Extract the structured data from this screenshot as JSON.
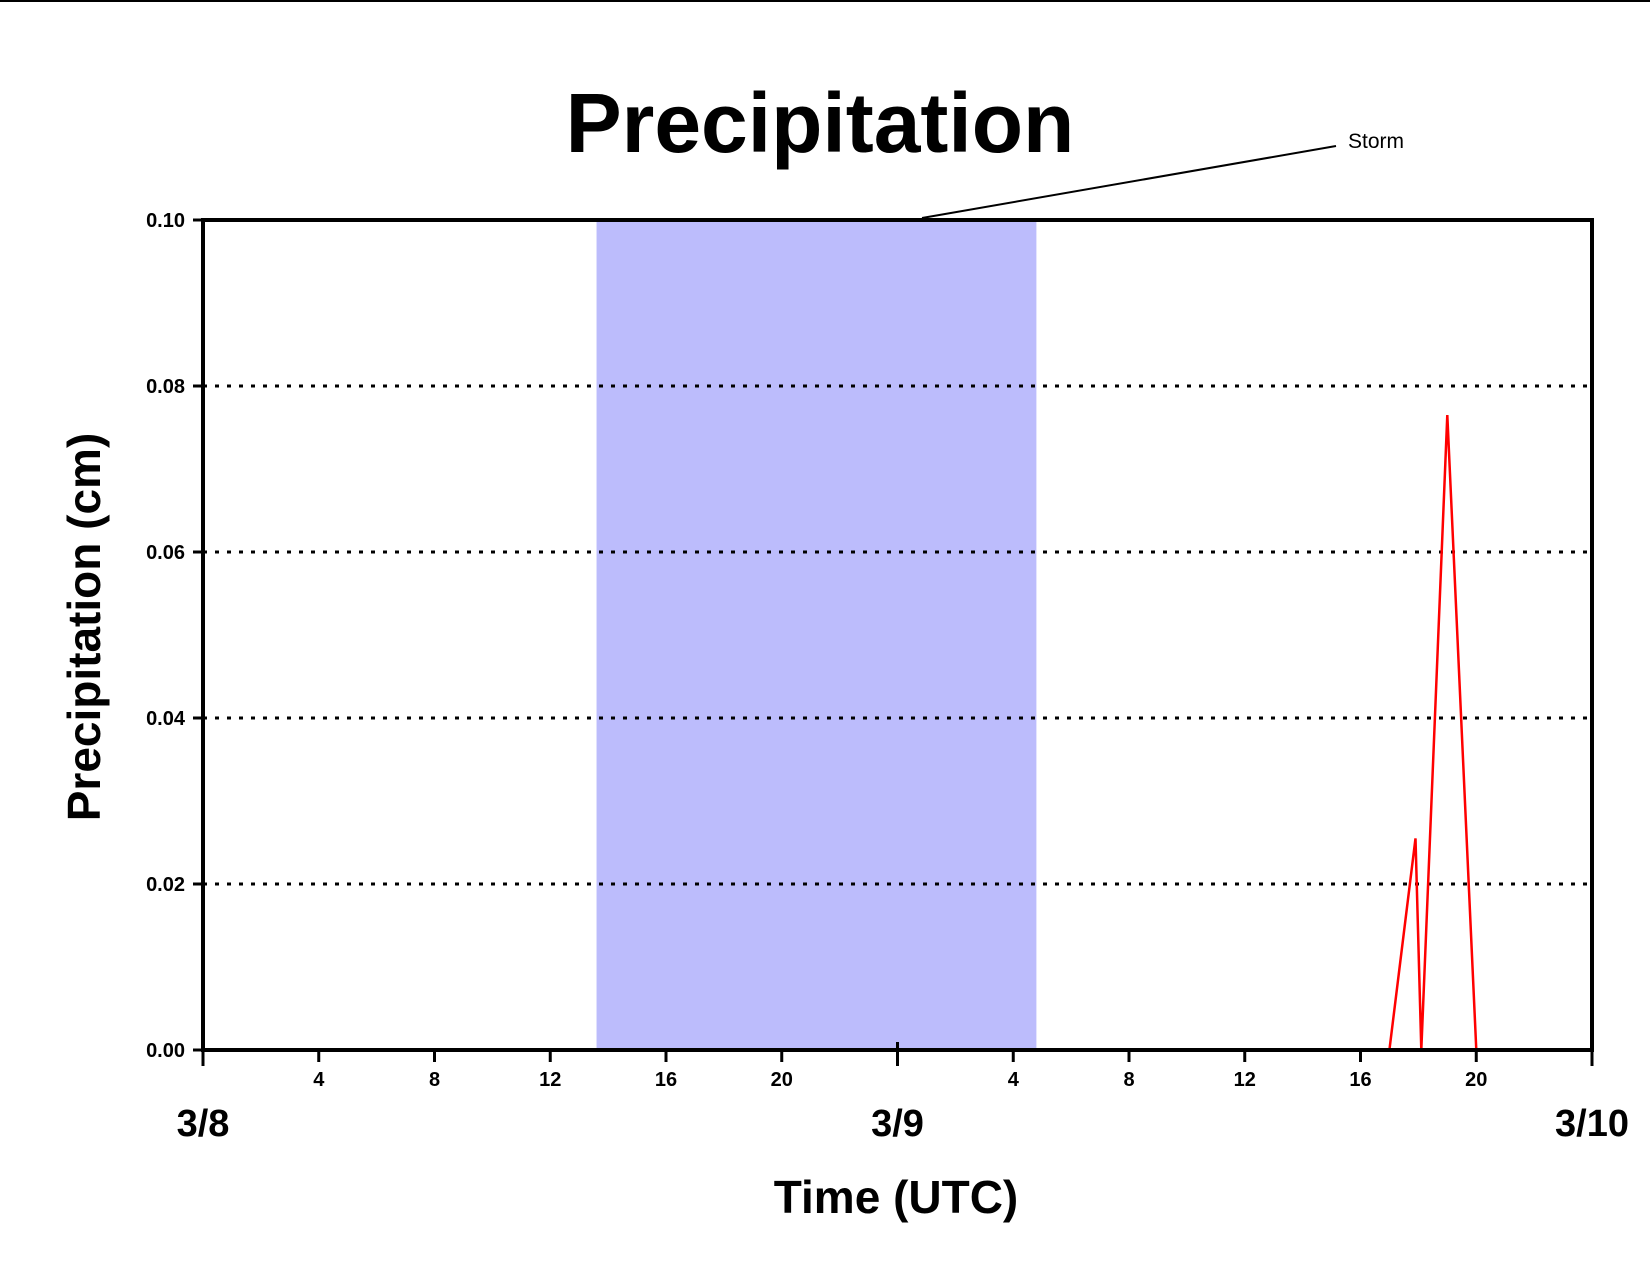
{
  "chart_data": {
    "type": "line",
    "title": "Precipitation",
    "xlabel": "Time (UTC)",
    "ylabel": "Precipitation (cm)",
    "ylim": [
      0,
      0.1
    ],
    "yticks": [
      "0.00",
      "0.02",
      "0.04",
      "0.06",
      "0.08",
      "0.10"
    ],
    "xlim": [
      "3/8 00:00",
      "3/10 00:00"
    ],
    "x_unit": "hours UTC from 3/8 00:00",
    "hour_ticks": [
      {
        "hour": 4,
        "label": "4"
      },
      {
        "hour": 8,
        "label": "8"
      },
      {
        "hour": 12,
        "label": "12"
      },
      {
        "hour": 16,
        "label": "16"
      },
      {
        "hour": 20,
        "label": "20"
      },
      {
        "hour": 28,
        "label": "4"
      },
      {
        "hour": 32,
        "label": "8"
      },
      {
        "hour": 36,
        "label": "12"
      },
      {
        "hour": 40,
        "label": "16"
      },
      {
        "hour": 44,
        "label": "20"
      }
    ],
    "date_ticks": [
      {
        "hour": 0,
        "label": "3/8"
      },
      {
        "hour": 24,
        "label": "3/9"
      },
      {
        "hour": 48,
        "label": "3/10"
      }
    ],
    "grid": "horizontal dotted",
    "series": [
      {
        "color": "#ff0000",
        "x": [
          0,
          41,
          41.9,
          42.1,
          43,
          44,
          48
        ],
        "y": [
          0,
          0,
          0.0255,
          0,
          0.0765,
          0,
          0
        ]
      }
    ],
    "shaded_region": {
      "x_start": 13.6,
      "x_end": 28.8,
      "color": "#bcbcfc",
      "label": "Storm"
    }
  }
}
